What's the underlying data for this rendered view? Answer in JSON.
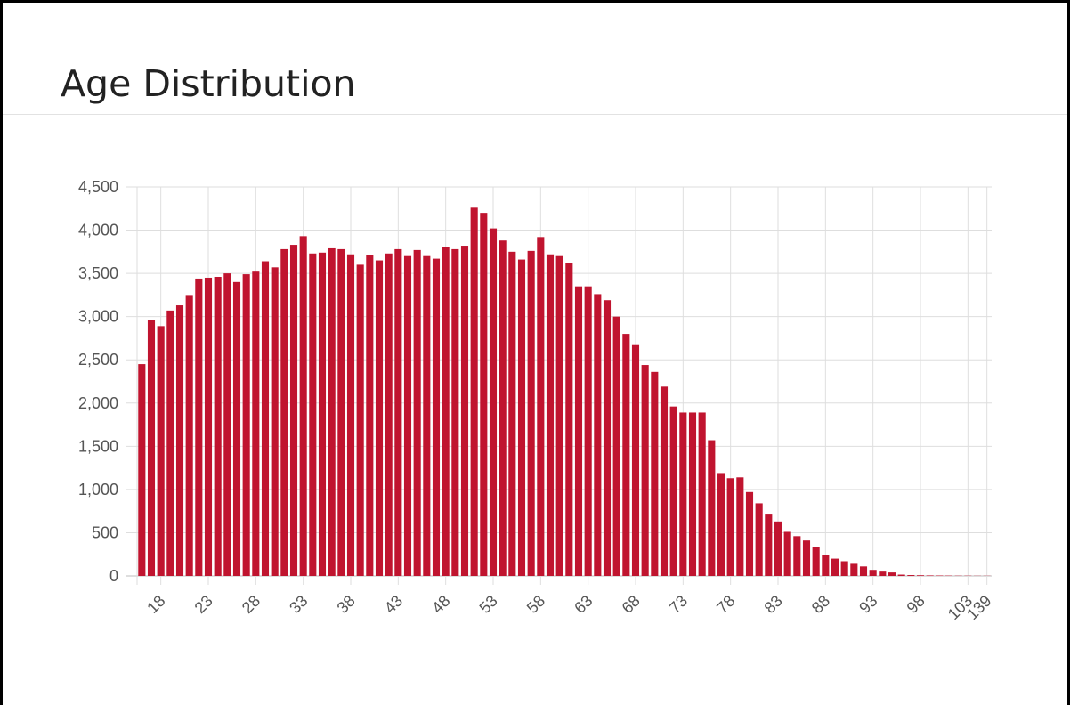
{
  "card": {
    "title": "Age Distribution"
  },
  "chart_data": {
    "type": "bar",
    "title": "Age Distribution",
    "xlabel": "",
    "ylabel": "",
    "ylim": [
      0,
      4500
    ],
    "y_ticks": [
      0,
      500,
      1000,
      1500,
      2000,
      2500,
      3000,
      3500,
      4000,
      4500
    ],
    "y_tick_labels": [
      "0",
      "500",
      "1,000",
      "1,500",
      "2,000",
      "2,500",
      "3,000",
      "3,500",
      "4,000",
      "4,500"
    ],
    "x_tick_labels": [
      "18",
      "23",
      "28",
      "33",
      "38",
      "43",
      "48",
      "53",
      "58",
      "63",
      "68",
      "73",
      "78",
      "83",
      "88",
      "93",
      "98",
      "103",
      "139"
    ],
    "bar_color": "#c0142f",
    "grid": true,
    "categories": [
      "16",
      "17",
      "18",
      "19",
      "20",
      "21",
      "22",
      "23",
      "24",
      "25",
      "26",
      "27",
      "28",
      "29",
      "30",
      "31",
      "32",
      "33",
      "34",
      "35",
      "36",
      "37",
      "38",
      "39",
      "40",
      "41",
      "42",
      "43",
      "44",
      "45",
      "46",
      "47",
      "48",
      "49",
      "50",
      "51",
      "52",
      "53",
      "54",
      "55",
      "56",
      "57",
      "58",
      "59",
      "60",
      "61",
      "62",
      "63",
      "64",
      "65",
      "66",
      "67",
      "68",
      "69",
      "70",
      "71",
      "72",
      "73",
      "74",
      "75",
      "76",
      "77",
      "78",
      "79",
      "80",
      "81",
      "82",
      "83",
      "84",
      "85",
      "86",
      "87",
      "88",
      "89",
      "90",
      "91",
      "92",
      "93",
      "94",
      "95",
      "96",
      "97",
      "98",
      "99",
      "100",
      "101",
      "102",
      "103",
      "104",
      "139"
    ],
    "values": [
      2450,
      2960,
      2890,
      3070,
      3130,
      3250,
      3440,
      3450,
      3460,
      3500,
      3400,
      3490,
      3520,
      3640,
      3570,
      3780,
      3830,
      3930,
      3730,
      3740,
      3790,
      3780,
      3720,
      3600,
      3710,
      3650,
      3730,
      3780,
      3700,
      3770,
      3700,
      3670,
      3810,
      3780,
      3820,
      4260,
      4200,
      4020,
      3880,
      3750,
      3660,
      3760,
      3920,
      3720,
      3700,
      3620,
      3350,
      3350,
      3260,
      3190,
      3000,
      2800,
      2670,
      2440,
      2360,
      2190,
      1960,
      1890,
      1890,
      1890,
      1570,
      1190,
      1130,
      1140,
      970,
      840,
      720,
      630,
      510,
      460,
      410,
      330,
      240,
      200,
      170,
      140,
      110,
      70,
      50,
      40,
      15,
      10,
      8,
      6,
      5,
      4,
      3,
      3,
      2,
      2
    ]
  }
}
